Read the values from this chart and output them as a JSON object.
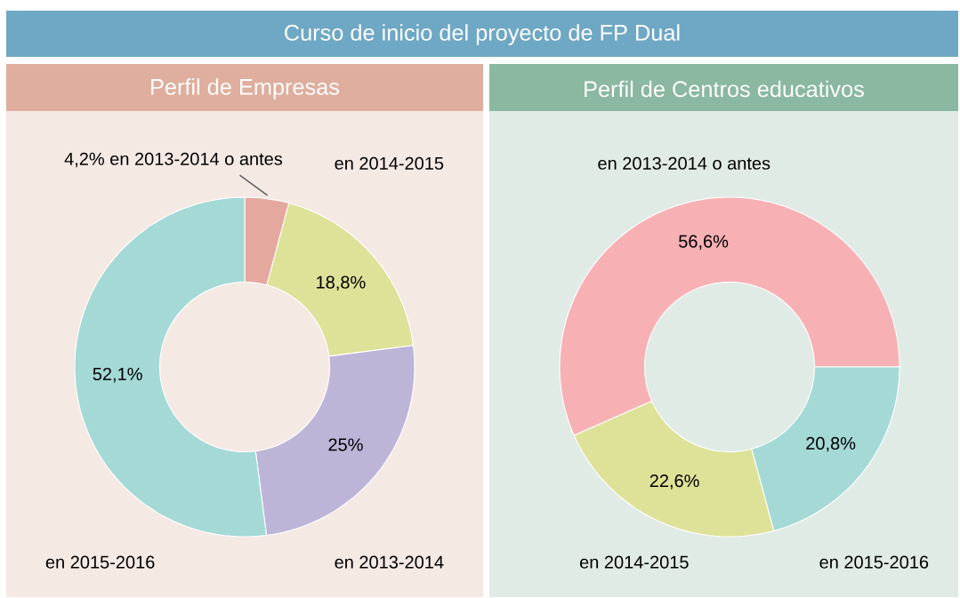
{
  "chart_data": [
    {
      "type": "other",
      "title": "Curso de inicio del proyecto de FP Dual"
    },
    {
      "type": "donut",
      "title": "Perfil de Empresas",
      "categories": [
        "en 2013-2014 o antes",
        "en 2014-2015",
        "en 2013-2014",
        "en 2015-2016"
      ],
      "values": [
        4.2,
        18.8,
        25,
        52.1
      ],
      "value_labels": [
        "4,2%",
        "18,8%",
        "25%",
        "52,1%"
      ],
      "colors": [
        "#e5a89e",
        "#dee298",
        "#bdb5d8",
        "#a4d9d6"
      ]
    },
    {
      "type": "donut",
      "title": "Perfil de Centros educativos",
      "categories": [
        "en 2013-2014 o antes",
        "en 2014-2015",
        "en 2015-2016"
      ],
      "values": [
        56.6,
        22.6,
        20.8
      ],
      "value_labels": [
        "56,6%",
        "22,6%",
        "20,8%"
      ],
      "colors": [
        "#f7b1b5",
        "#dee298",
        "#a4d9d6"
      ]
    }
  ]
}
